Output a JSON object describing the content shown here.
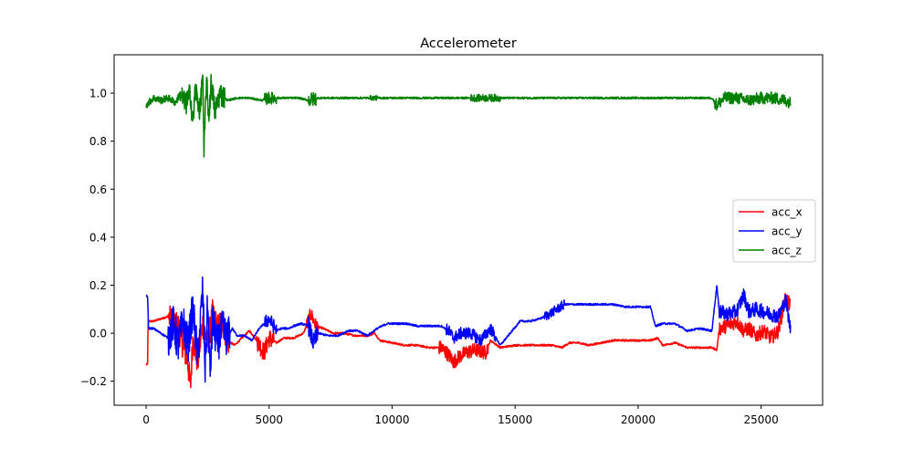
{
  "chart_data": {
    "type": "line",
    "title": "Accelerometer",
    "xlabel": "",
    "ylabel": "",
    "xlim": [
      -1300,
      27500
    ],
    "ylim": [
      -0.3,
      1.16
    ],
    "x_ticks": [
      0,
      5000,
      10000,
      15000,
      20000,
      25000
    ],
    "y_ticks": [
      -0.2,
      0.0,
      0.2,
      0.4,
      0.6,
      0.8,
      1.0
    ],
    "grid": false,
    "legend_position": "center-right",
    "series": [
      {
        "name": "acc_x",
        "color": "#ff0000",
        "points": [
          [
            0,
            -0.13
          ],
          [
            60,
            -0.13
          ],
          [
            80,
            0.05
          ],
          [
            300,
            0.05
          ],
          [
            600,
            0.06
          ],
          [
            900,
            0.07
          ],
          [
            1100,
            0.04
          ],
          [
            1300,
            0.03
          ],
          [
            1500,
            -0.05
          ],
          [
            1700,
            -0.12
          ],
          [
            1800,
            -0.23
          ],
          [
            1900,
            -0.02
          ],
          [
            2100,
            -0.12
          ],
          [
            2300,
            0.04
          ],
          [
            2500,
            -0.05
          ],
          [
            2700,
            0.08
          ],
          [
            2900,
            0.02
          ],
          [
            3100,
            0.05
          ],
          [
            3300,
            -0.03
          ],
          [
            3600,
            -0.05
          ],
          [
            3900,
            -0.02
          ],
          [
            4200,
            0.01
          ],
          [
            4500,
            -0.03
          ],
          [
            4800,
            -0.08
          ],
          [
            5000,
            -0.02
          ],
          [
            5300,
            -0.04
          ],
          [
            5600,
            -0.02
          ],
          [
            6000,
            -0.02
          ],
          [
            6400,
            0.0
          ],
          [
            6700,
            0.08
          ],
          [
            6900,
            0.03
          ],
          [
            7200,
            0.02
          ],
          [
            7600,
            0.0
          ],
          [
            8000,
            0.0
          ],
          [
            8500,
            -0.01
          ],
          [
            9000,
            -0.01
          ],
          [
            9300,
            0.0
          ],
          [
            9500,
            -0.03
          ],
          [
            10000,
            -0.04
          ],
          [
            10500,
            -0.05
          ],
          [
            11000,
            -0.05
          ],
          [
            11500,
            -0.06
          ],
          [
            12000,
            -0.06
          ],
          [
            12300,
            -0.09
          ],
          [
            12500,
            -0.12
          ],
          [
            12700,
            -0.1
          ],
          [
            13000,
            -0.08
          ],
          [
            13400,
            -0.07
          ],
          [
            13800,
            -0.08
          ],
          [
            14000,
            -0.03
          ],
          [
            14400,
            -0.06
          ],
          [
            15000,
            -0.05
          ],
          [
            15500,
            -0.05
          ],
          [
            16000,
            -0.05
          ],
          [
            16500,
            -0.05
          ],
          [
            16900,
            -0.06
          ],
          [
            17200,
            -0.04
          ],
          [
            17600,
            -0.04
          ],
          [
            18000,
            -0.05
          ],
          [
            18500,
            -0.04
          ],
          [
            19000,
            -0.03
          ],
          [
            19500,
            -0.03
          ],
          [
            20000,
            -0.03
          ],
          [
            20500,
            -0.03
          ],
          [
            20800,
            -0.02
          ],
          [
            21000,
            -0.05
          ],
          [
            21500,
            -0.04
          ],
          [
            22000,
            -0.06
          ],
          [
            22500,
            -0.06
          ],
          [
            23000,
            -0.06
          ],
          [
            23200,
            -0.07
          ],
          [
            23300,
            0.02
          ],
          [
            23600,
            0.03
          ],
          [
            24000,
            0.05
          ],
          [
            24300,
            0.01
          ],
          [
            24500,
            0.02
          ],
          [
            24800,
            -0.01
          ],
          [
            25100,
            0.01
          ],
          [
            25400,
            -0.02
          ],
          [
            25700,
            0.01
          ],
          [
            26000,
            0.15
          ],
          [
            26200,
            0.11
          ]
        ]
      },
      {
        "name": "acc_y",
        "color": "#0000ff",
        "points": [
          [
            0,
            0.16
          ],
          [
            60,
            0.15
          ],
          [
            100,
            0.02
          ],
          [
            300,
            0.02
          ],
          [
            600,
            0.0
          ],
          [
            900,
            -0.02
          ],
          [
            1100,
            0.04
          ],
          [
            1300,
            -0.05
          ],
          [
            1500,
            0.05
          ],
          [
            1700,
            -0.05
          ],
          [
            1900,
            0.1
          ],
          [
            2100,
            -0.1
          ],
          [
            2300,
            0.18
          ],
          [
            2400,
            -0.15
          ],
          [
            2500,
            0.12
          ],
          [
            2600,
            -0.18
          ],
          [
            2700,
            0.05
          ],
          [
            2900,
            -0.05
          ],
          [
            3100,
            0.02
          ],
          [
            3300,
            -0.02
          ],
          [
            3500,
            0.02
          ],
          [
            3700,
            -0.01
          ],
          [
            4000,
            -0.01
          ],
          [
            4300,
            -0.03
          ],
          [
            4600,
            0.02
          ],
          [
            5000,
            0.06
          ],
          [
            5300,
            0.01
          ],
          [
            5500,
            0.02
          ],
          [
            5800,
            0.02
          ],
          [
            6000,
            0.03
          ],
          [
            6300,
            0.04
          ],
          [
            6600,
            0.03
          ],
          [
            6800,
            -0.04
          ],
          [
            7000,
            0.0
          ],
          [
            7400,
            -0.01
          ],
          [
            7800,
            -0.01
          ],
          [
            8200,
            0.01
          ],
          [
            8600,
            0.01
          ],
          [
            9000,
            -0.01
          ],
          [
            9400,
            0.02
          ],
          [
            9800,
            0.04
          ],
          [
            10200,
            0.04
          ],
          [
            10600,
            0.04
          ],
          [
            11000,
            0.03
          ],
          [
            11500,
            0.03
          ],
          [
            12000,
            0.03
          ],
          [
            12300,
            0.01
          ],
          [
            12500,
            -0.02
          ],
          [
            12800,
            0.0
          ],
          [
            13200,
            0.0
          ],
          [
            13600,
            -0.03
          ],
          [
            14000,
            0.02
          ],
          [
            14400,
            -0.05
          ],
          [
            14800,
            0.0
          ],
          [
            15200,
            0.05
          ],
          [
            15600,
            0.05
          ],
          [
            16000,
            0.06
          ],
          [
            16400,
            0.08
          ],
          [
            16700,
            0.1
          ],
          [
            17000,
            0.12
          ],
          [
            17500,
            0.12
          ],
          [
            18000,
            0.12
          ],
          [
            18500,
            0.12
          ],
          [
            19000,
            0.12
          ],
          [
            19500,
            0.11
          ],
          [
            20000,
            0.11
          ],
          [
            20500,
            0.11
          ],
          [
            20700,
            0.03
          ],
          [
            21000,
            0.04
          ],
          [
            21500,
            0.04
          ],
          [
            22000,
            0.01
          ],
          [
            22500,
            0.02
          ],
          [
            23000,
            0.01
          ],
          [
            23200,
            0.2
          ],
          [
            23300,
            0.09
          ],
          [
            23600,
            0.08
          ],
          [
            24000,
            0.09
          ],
          [
            24300,
            0.16
          ],
          [
            24500,
            0.09
          ],
          [
            24800,
            0.1
          ],
          [
            25100,
            0.09
          ],
          [
            25400,
            0.08
          ],
          [
            25700,
            0.07
          ],
          [
            26000,
            0.14
          ],
          [
            26200,
            0.01
          ]
        ]
      },
      {
        "name": "acc_z",
        "color": "#008000",
        "points": [
          [
            0,
            0.95
          ],
          [
            300,
            0.98
          ],
          [
            600,
            0.97
          ],
          [
            900,
            0.98
          ],
          [
            1200,
            0.96
          ],
          [
            1400,
            1.0
          ],
          [
            1600,
            0.95
          ],
          [
            1800,
            1.0
          ],
          [
            1900,
            0.87
          ],
          [
            2000,
            1.02
          ],
          [
            2200,
            0.92
          ],
          [
            2300,
            1.1
          ],
          [
            2350,
            0.74
          ],
          [
            2450,
            1.06
          ],
          [
            2550,
            0.9
          ],
          [
            2650,
            1.05
          ],
          [
            2800,
            0.92
          ],
          [
            3000,
            1.0
          ],
          [
            3300,
            0.97
          ],
          [
            3700,
            0.98
          ],
          [
            4200,
            0.98
          ],
          [
            4700,
            0.97
          ],
          [
            5000,
            0.98
          ],
          [
            5300,
            0.98
          ],
          [
            5700,
            0.98
          ],
          [
            6200,
            0.98
          ],
          [
            6600,
            0.97
          ],
          [
            7000,
            0.98
          ],
          [
            7500,
            0.98
          ],
          [
            8000,
            0.98
          ],
          [
            9000,
            0.98
          ],
          [
            10000,
            0.98
          ],
          [
            11000,
            0.98
          ],
          [
            12000,
            0.98
          ],
          [
            12500,
            0.98
          ],
          [
            13000,
            0.98
          ],
          [
            13600,
            0.98
          ],
          [
            14000,
            0.98
          ],
          [
            14500,
            0.98
          ],
          [
            15000,
            0.98
          ],
          [
            16000,
            0.98
          ],
          [
            17000,
            0.98
          ],
          [
            18000,
            0.98
          ],
          [
            19000,
            0.98
          ],
          [
            20000,
            0.98
          ],
          [
            21000,
            0.98
          ],
          [
            22000,
            0.98
          ],
          [
            23000,
            0.98
          ],
          [
            23200,
            0.95
          ],
          [
            23500,
            0.98
          ],
          [
            24000,
            0.98
          ],
          [
            24500,
            0.97
          ],
          [
            25000,
            0.98
          ],
          [
            25500,
            0.98
          ],
          [
            26000,
            0.97
          ],
          [
            26200,
            0.96
          ]
        ]
      }
    ],
    "noise_bursts": [
      {
        "series": "acc_x",
        "ranges": [
          [
            900,
            3400,
            0.06
          ],
          [
            4500,
            5200,
            0.04
          ],
          [
            6500,
            7000,
            0.03
          ],
          [
            11900,
            13900,
            0.03
          ],
          [
            23300,
            26200,
            0.03
          ]
        ]
      },
      {
        "series": "acc_y",
        "ranges": [
          [
            900,
            3400,
            0.08
          ],
          [
            4800,
            5300,
            0.03
          ],
          [
            6600,
            7000,
            0.04
          ],
          [
            12200,
            14200,
            0.025
          ],
          [
            16200,
            17000,
            0.02
          ],
          [
            23300,
            26200,
            0.03
          ]
        ]
      },
      {
        "series": "acc_z",
        "ranges": [
          [
            0,
            1400,
            0.015
          ],
          [
            1400,
            3200,
            0.05
          ],
          [
            4800,
            5300,
            0.025
          ],
          [
            6600,
            6900,
            0.03
          ],
          [
            9100,
            9400,
            0.01
          ],
          [
            13200,
            14400,
            0.015
          ],
          [
            23100,
            26200,
            0.025
          ]
        ]
      }
    ]
  }
}
